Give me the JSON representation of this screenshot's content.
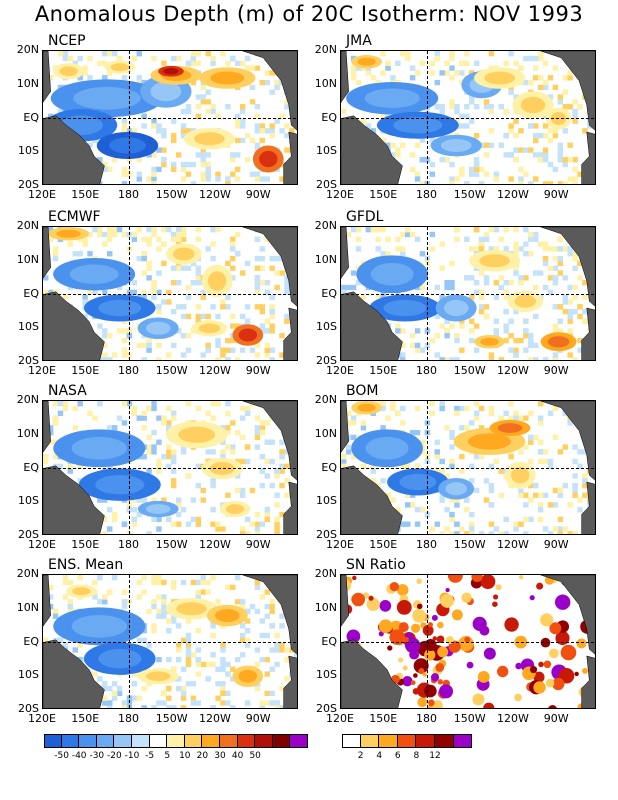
{
  "title": "Anomalous Depth (m) of 20C Isotherm: NOV 1993",
  "lat_labels": [
    "20N",
    "10N",
    "EQ",
    "10S",
    "20S"
  ],
  "lon_labels": [
    "120E",
    "150E",
    "180",
    "150W",
    "120W",
    "90W"
  ],
  "panels": [
    {
      "label": "NCEP"
    },
    {
      "label": "JMA"
    },
    {
      "label": "ECMWF"
    },
    {
      "label": "GFDL"
    },
    {
      "label": "NASA"
    },
    {
      "label": "BOM"
    },
    {
      "label": "ENS. Mean"
    },
    {
      "label": "SN Ratio"
    }
  ],
  "anomaly_colorbar": {
    "colors": [
      "#1f5fd6",
      "#2f79e6",
      "#4a92ee",
      "#6aaaf2",
      "#96c6f6",
      "#c4e2fa",
      "#ffffff",
      "#fff2a8",
      "#ffd060",
      "#ffa820",
      "#f07020",
      "#d83010",
      "#b01008",
      "#800000",
      "#9a00c8"
    ],
    "labels": [
      "-50",
      "-40",
      "-30",
      "-20",
      "-10",
      "-5",
      "5",
      "10",
      "20",
      "30",
      "40",
      "50"
    ]
  },
  "sn_colorbar": {
    "colors": [
      "#ffffff",
      "#ffd060",
      "#ffa820",
      "#f05010",
      "#c81808",
      "#900000",
      "#9a00c8"
    ],
    "labels": [
      "2",
      "4",
      "6",
      "8",
      "12"
    ]
  },
  "colors": {
    "land": "#5a5a5a"
  }
}
